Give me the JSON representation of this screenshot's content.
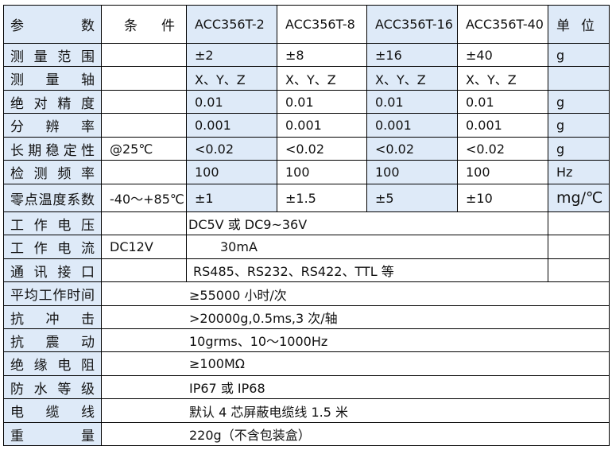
{
  "colors": {
    "highlight": "#deeaf8",
    "border": "#000000"
  },
  "header": [
    "参数",
    "条件",
    "ACC356T-2",
    "ACC356T-8",
    "ACC356T-16",
    "ACC356T-40",
    "单位"
  ],
  "spec_rows": [
    {
      "label": "测量范围",
      "condition": "",
      "values": [
        "±2",
        "±8",
        "±16",
        "±40"
      ],
      "unit": "g"
    },
    {
      "label": "测量轴",
      "condition": "",
      "values": [
        "X、Y、Z",
        "X、Y、Z",
        "X、Y、Z",
        "X、Y、Z"
      ],
      "unit": ""
    },
    {
      "label": "绝对精度",
      "condition": "",
      "values": [
        "0.01",
        "0.01",
        "0.01",
        "0.01"
      ],
      "unit": "g"
    },
    {
      "label": "分辨率",
      "condition": "",
      "values": [
        "0.001",
        "0.001",
        "0.001",
        "0.001"
      ],
      "unit": "g"
    },
    {
      "label": "长期稳定性",
      "condition": "@25℃",
      "values": [
        "<0.02",
        "<0.02",
        "<0.02",
        "<0.02"
      ],
      "unit": "g"
    },
    {
      "label": "检测频率",
      "condition": "",
      "values": [
        "100",
        "100",
        "100",
        "100"
      ],
      "unit": "Hz"
    },
    {
      "label": "零点温度系数",
      "condition": "-40～+85℃",
      "values": [
        "±1",
        "±1.5",
        "±5",
        "±10"
      ],
      "unit": "mg/℃"
    }
  ],
  "merged_rows_a": [
    {
      "label": "工作电压",
      "condition": "",
      "value": "DC5V 或 DC9~36V",
      "indent": 0
    },
    {
      "label": "工作电流",
      "condition": "DC12V",
      "value": "30mA",
      "indent": 1
    },
    {
      "label": "通讯接口",
      "condition": "",
      "value": "RS485、RS232、RS422、TTL 等",
      "indent": 0
    }
  ],
  "merged_rows_b": [
    {
      "label": "平均工作时间",
      "value": "≥55000 小时/次"
    },
    {
      "label": "抗冲击",
      "value": ">20000g,0.5ms,3 次/轴"
    },
    {
      "label": "抗震动",
      "value": "10grms、10～1000Hz"
    },
    {
      "label": "绝缘电阻",
      "value": "≥100MΩ"
    },
    {
      "label": "防水等级",
      "value": "IP67 或 IP68"
    },
    {
      "label": "电缆线",
      "value": "默认 4 芯屏蔽电缆线 1.5 米"
    },
    {
      "label": "重量",
      "value": "220g（不含包装盒）"
    }
  ]
}
